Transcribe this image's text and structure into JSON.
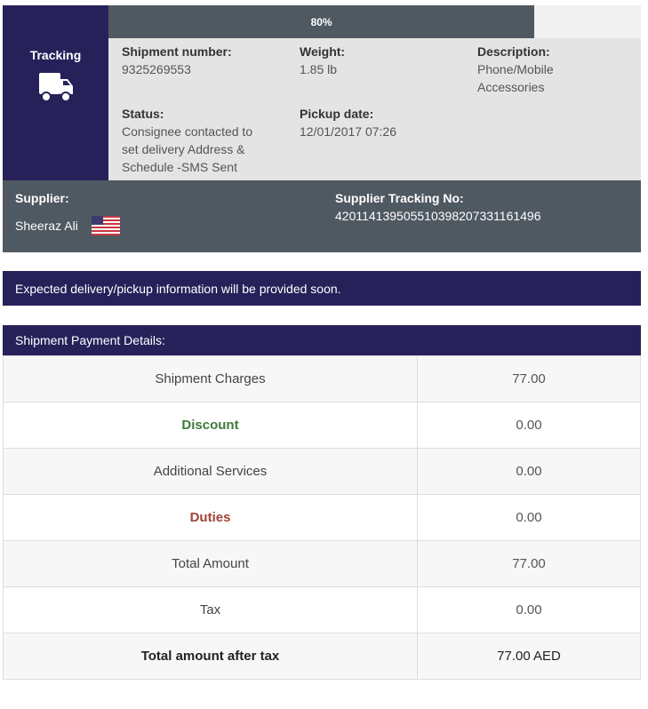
{
  "tracking": {
    "label": "Tracking",
    "icon": "truck-icon",
    "progress_percent": 80,
    "progress_label": "80%"
  },
  "info": {
    "shipment_number": {
      "label": "Shipment number:",
      "value": "9325269553"
    },
    "weight": {
      "label": "Weight:",
      "value": "1.85 lb"
    },
    "description": {
      "label": "Description:",
      "value": "Phone/Mobile Accessories"
    },
    "status": {
      "label": "Status:",
      "value": "Consignee contacted to set delivery Address & Schedule -SMS Sent"
    },
    "pickup_date": {
      "label": "Pickup date:",
      "value": "12/01/2017 07:26"
    }
  },
  "supplier": {
    "label": "Supplier:",
    "name": "Sheeraz Ali",
    "flag": "us-flag-icon",
    "tracking_label": "Supplier Tracking No:",
    "tracking_no": "420114139505510398207331161496"
  },
  "delivery_notice": "Expected delivery/pickup information will be provided soon.",
  "payment": {
    "title": "Shipment Payment Details:",
    "rows": [
      {
        "label": "Shipment Charges",
        "value": "77.00"
      },
      {
        "label": "Discount",
        "value": "0.00",
        "color": "#3c7a3c"
      },
      {
        "label": "Additional Services",
        "value": "0.00"
      },
      {
        "label": "Duties",
        "value": "0.00",
        "color": "#a0453a"
      },
      {
        "label": "Total Amount",
        "value": "77.00"
      },
      {
        "label": "Tax",
        "value": "0.00"
      },
      {
        "label": "Total amount after tax",
        "value": "77.00 AED"
      }
    ]
  },
  "colors": {
    "navy": "#27215a",
    "slate": "#4f5962"
  }
}
